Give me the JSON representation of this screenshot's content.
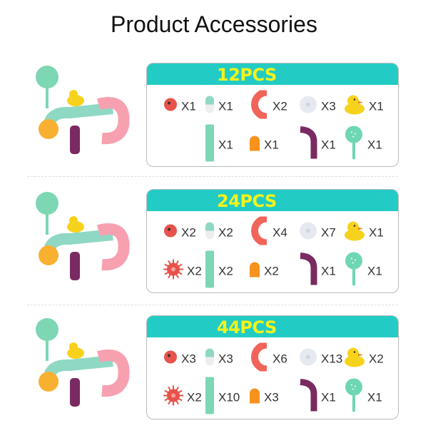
{
  "title": "Product Accessories",
  "colors": {
    "header": "#22ccc4",
    "header_text": "#f4f21c"
  },
  "panels": [
    {
      "label": "12PCS",
      "items": [
        {
          "icon": "ball-icon",
          "qty": "X1"
        },
        {
          "icon": "capsule-icon",
          "qty": "X1"
        },
        {
          "icon": "curve-track-icon",
          "qty": "X2"
        },
        {
          "icon": "suction-cup-icon",
          "qty": "X3"
        },
        {
          "icon": "duck-icon",
          "qty": "X1"
        },
        {
          "icon": "",
          "qty": ""
        },
        {
          "icon": "straight-tube-icon",
          "qty": "X1"
        },
        {
          "icon": "end-cap-icon",
          "qty": "X1"
        },
        {
          "icon": "elbow-tube-icon",
          "qty": "X1"
        },
        {
          "icon": "scoop-icon",
          "qty": "X1"
        }
      ]
    },
    {
      "label": "24PCS",
      "items": [
        {
          "icon": "ball-icon",
          "qty": "X2"
        },
        {
          "icon": "capsule-icon",
          "qty": "X2"
        },
        {
          "icon": "curve-track-icon",
          "qty": "X4"
        },
        {
          "icon": "suction-cup-icon",
          "qty": "X7"
        },
        {
          "icon": "duck-icon",
          "qty": "X1"
        },
        {
          "icon": "water-wheel-icon",
          "qty": "X2"
        },
        {
          "icon": "straight-tube-icon",
          "qty": "X2"
        },
        {
          "icon": "end-cap-icon",
          "qty": "X2"
        },
        {
          "icon": "elbow-tube-icon",
          "qty": "X1"
        },
        {
          "icon": "scoop-icon",
          "qty": "X1"
        }
      ]
    },
    {
      "label": "44PCS",
      "items": [
        {
          "icon": "ball-icon",
          "qty": "X3"
        },
        {
          "icon": "capsule-icon",
          "qty": "X3"
        },
        {
          "icon": "curve-track-icon",
          "qty": "X6"
        },
        {
          "icon": "suction-cup-icon",
          "qty": "X13"
        },
        {
          "icon": "duck-icon",
          "qty": "X2"
        },
        {
          "icon": "water-wheel-icon",
          "qty": "X2"
        },
        {
          "icon": "straight-tube-icon",
          "qty": "X10"
        },
        {
          "icon": "end-cap-icon",
          "qty": "X3"
        },
        {
          "icon": "elbow-tube-icon",
          "qty": "X1"
        },
        {
          "icon": "scoop-icon",
          "qty": "X1"
        }
      ]
    }
  ]
}
